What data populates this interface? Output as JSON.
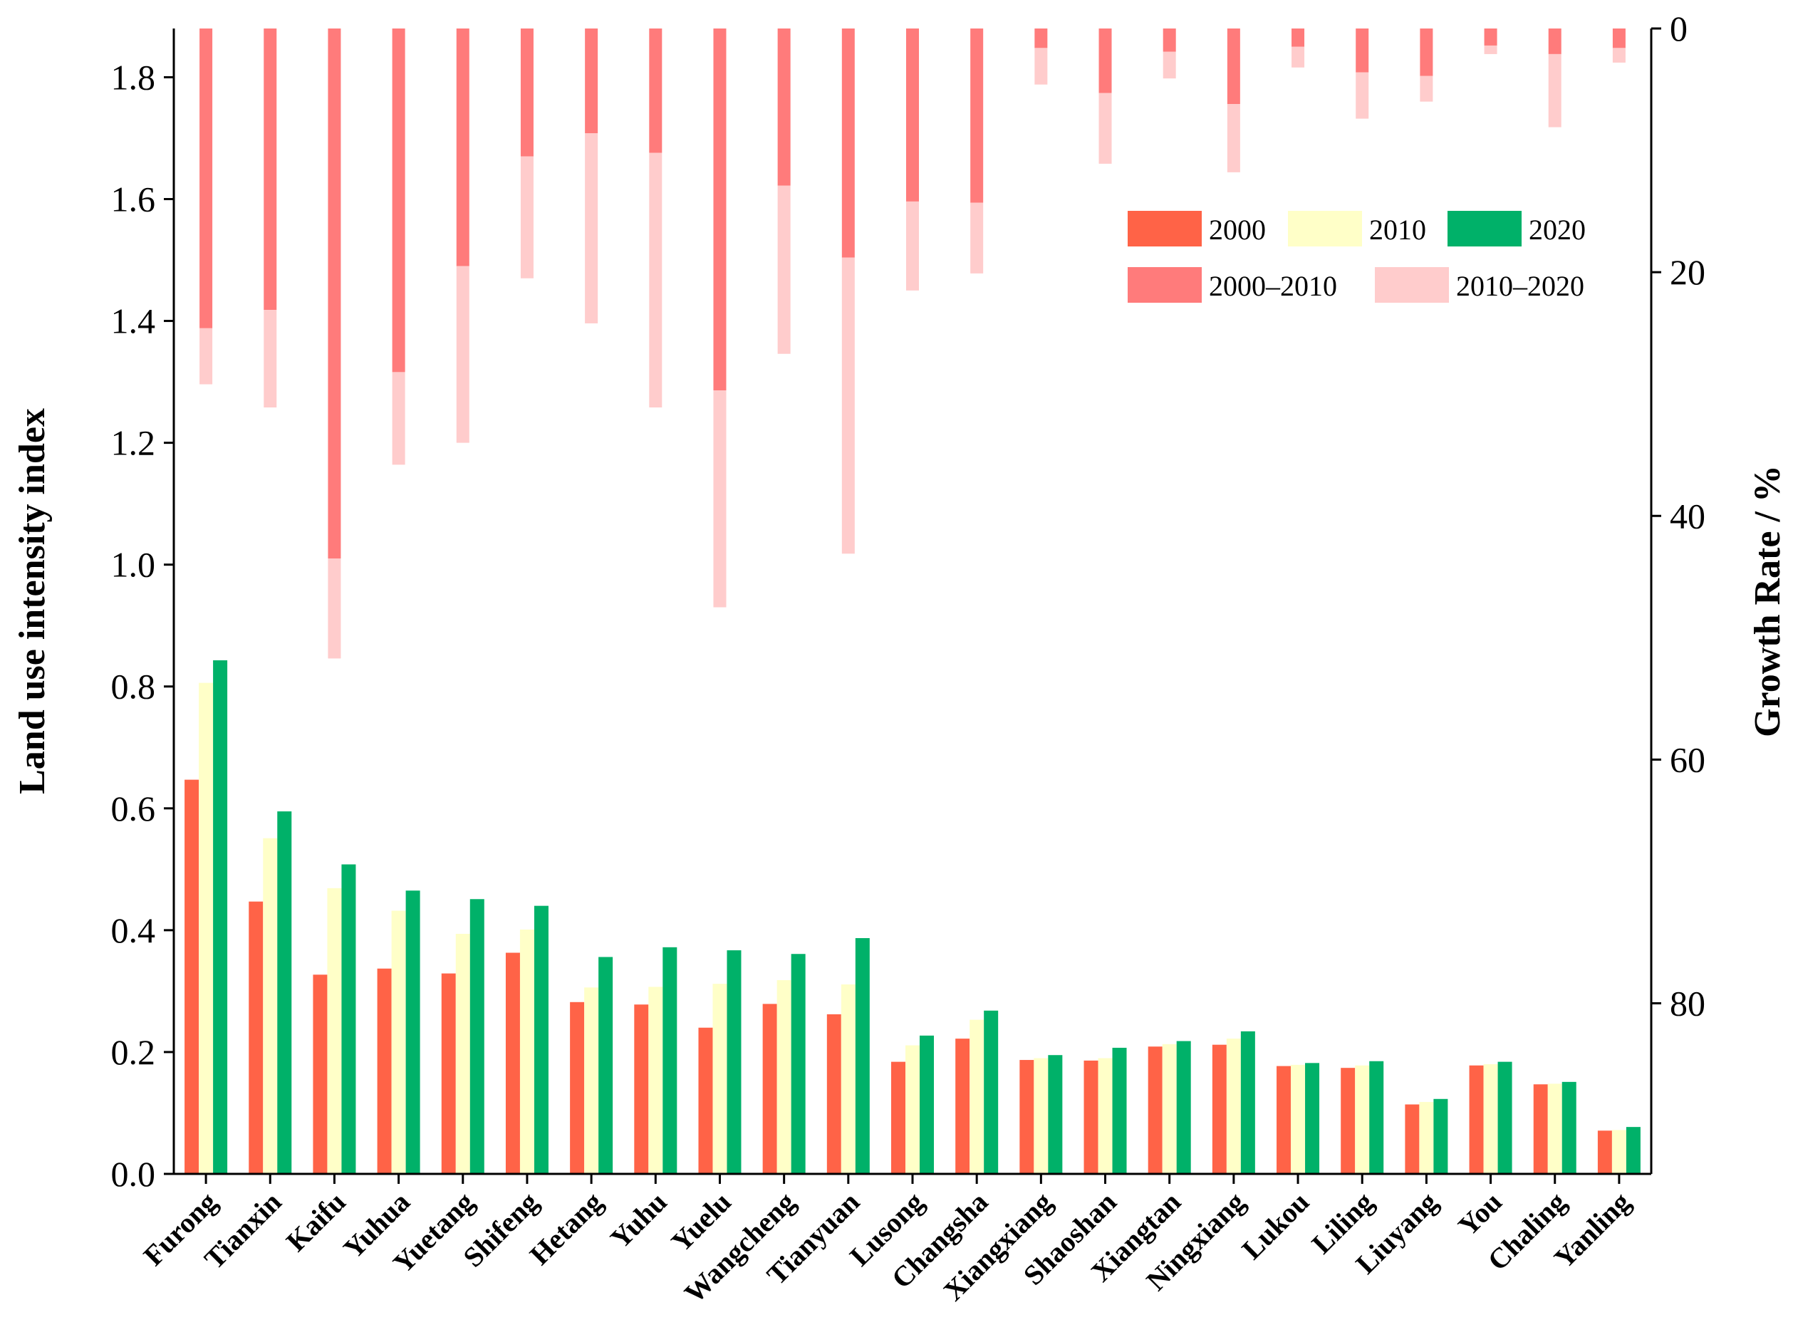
{
  "chart_data": {
    "type": "bar",
    "categories": [
      "Furong",
      "Tianxin",
      "Kaifu",
      "Yuhua",
      "Yuetang",
      "Shifeng",
      "Hetang",
      "Yuhu",
      "Yuelu",
      "Wangcheng",
      "Tianyuan",
      "Lusong",
      "Changsha",
      "Xiangxiang",
      "Shaoshan",
      "Xiangtan",
      "Ningxiang",
      "Lukou",
      "Liling",
      "Liuyang",
      "You",
      "Chaling",
      "Yanling"
    ],
    "ylabel": "Land use intensity index",
    "ylabel_right": "Growth Rate / %",
    "ylim": [
      0,
      1.88
    ],
    "ylim_right": [
      0,
      94
    ],
    "yticks": [
      "0.0",
      "0.2",
      "0.4",
      "0.6",
      "0.8",
      "1.0",
      "1.2",
      "1.4",
      "1.6",
      "1.8"
    ],
    "yticks_right": [
      "0",
      "20",
      "40",
      "60",
      "80"
    ],
    "series": [
      {
        "name": "2000",
        "axis": "left",
        "color": "#FF6347",
        "values": [
          0.647,
          0.447,
          0.327,
          0.337,
          0.329,
          0.363,
          0.282,
          0.278,
          0.24,
          0.279,
          0.262,
          0.184,
          0.222,
          0.187,
          0.186,
          0.209,
          0.212,
          0.177,
          0.174,
          0.114,
          0.178,
          0.147,
          0.071
        ]
      },
      {
        "name": "2010",
        "axis": "left",
        "color": "#FFFFC8",
        "values": [
          0.806,
          0.551,
          0.469,
          0.432,
          0.394,
          0.401,
          0.306,
          0.307,
          0.312,
          0.318,
          0.311,
          0.211,
          0.253,
          0.19,
          0.19,
          0.213,
          0.222,
          0.179,
          0.178,
          0.118,
          0.18,
          0.148,
          0.072
        ]
      },
      {
        "name": "2020",
        "axis": "left",
        "color": "#00B169",
        "values": [
          0.843,
          0.595,
          0.508,
          0.465,
          0.451,
          0.44,
          0.356,
          0.372,
          0.367,
          0.361,
          0.387,
          0.227,
          0.268,
          0.195,
          0.207,
          0.218,
          0.234,
          0.182,
          0.185,
          0.123,
          0.184,
          0.151,
          0.077
        ]
      },
      {
        "name": "2000–2010",
        "axis": "right",
        "color": "#FF7B7B",
        "values": [
          24.6,
          23.1,
          43.5,
          28.2,
          19.5,
          10.5,
          8.6,
          10.2,
          29.7,
          12.9,
          18.8,
          14.2,
          14.3,
          1.6,
          5.3,
          1.9,
          6.2,
          1.5,
          3.6,
          3.9,
          1.4,
          2.1,
          1.6
        ]
      },
      {
        "name": "2010–2020",
        "axis": "right",
        "color": "#FFCCCC",
        "values": [
          4.6,
          8.0,
          8.2,
          7.6,
          14.5,
          10.0,
          15.6,
          20.9,
          17.8,
          13.8,
          24.3,
          7.3,
          5.8,
          3.0,
          5.8,
          2.2,
          5.6,
          1.7,
          3.8,
          2.1,
          0.7,
          6.0,
          1.2
        ]
      }
    ]
  }
}
